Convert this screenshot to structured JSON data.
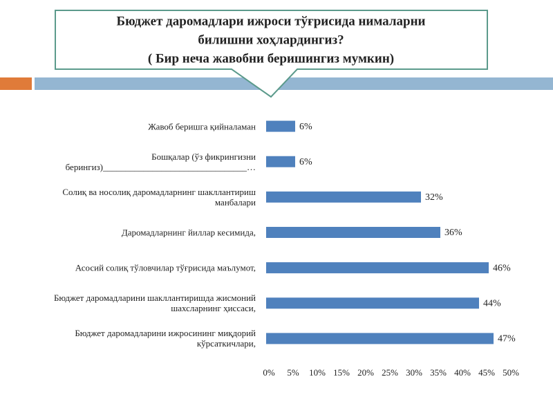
{
  "chart_data": {
    "type": "bar",
    "orientation": "horizontal",
    "title_lines": [
      "Бюджет даромадлари ижроси тўғрисида нималарни",
      "билишни хоҳлардингиз?",
      "( Бир неча жавобни беришингиз мумкин)"
    ],
    "categories": [
      "Жавоб беришга қийналаман",
      "Бошқалар (ўз фикрингизни берингиз)________________________________…",
      "Солиқ ва носолиқ даромадларнинг шакллантириш манбалари",
      "Даромадларнинг йиллар кесимида,",
      "Асосий солиқ тўловчилар тўғрисида маълумот,",
      "Бюджет даромадларини шакллантиришда жисмоний шахсларнинг ҳиссаси,",
      "Бюджет даромадларини ижросининг миқдорий кўрсаткичлари,"
    ],
    "values": [
      6,
      6,
      32,
      36,
      46,
      44,
      47
    ],
    "value_labels": [
      "6%",
      "6%",
      "32%",
      "36%",
      "46%",
      "44%",
      "47%"
    ],
    "color": "#4f81bd",
    "xlim": [
      0,
      50
    ],
    "xticks": [
      {
        "value": 0,
        "label": "0%"
      },
      {
        "value": 5,
        "label": "5%"
      },
      {
        "value": 10,
        "label": "10%"
      },
      {
        "value": 15,
        "label": "15%"
      },
      {
        "value": 20,
        "label": "20%"
      },
      {
        "value": 25,
        "label": "25%"
      },
      {
        "value": 30,
        "label": "30%"
      },
      {
        "value": 35,
        "label": "35%"
      },
      {
        "value": 40,
        "label": "40%"
      },
      {
        "value": 45,
        "label": "45%"
      },
      {
        "value": 50,
        "label": "50%"
      }
    ],
    "grid": false
  }
}
